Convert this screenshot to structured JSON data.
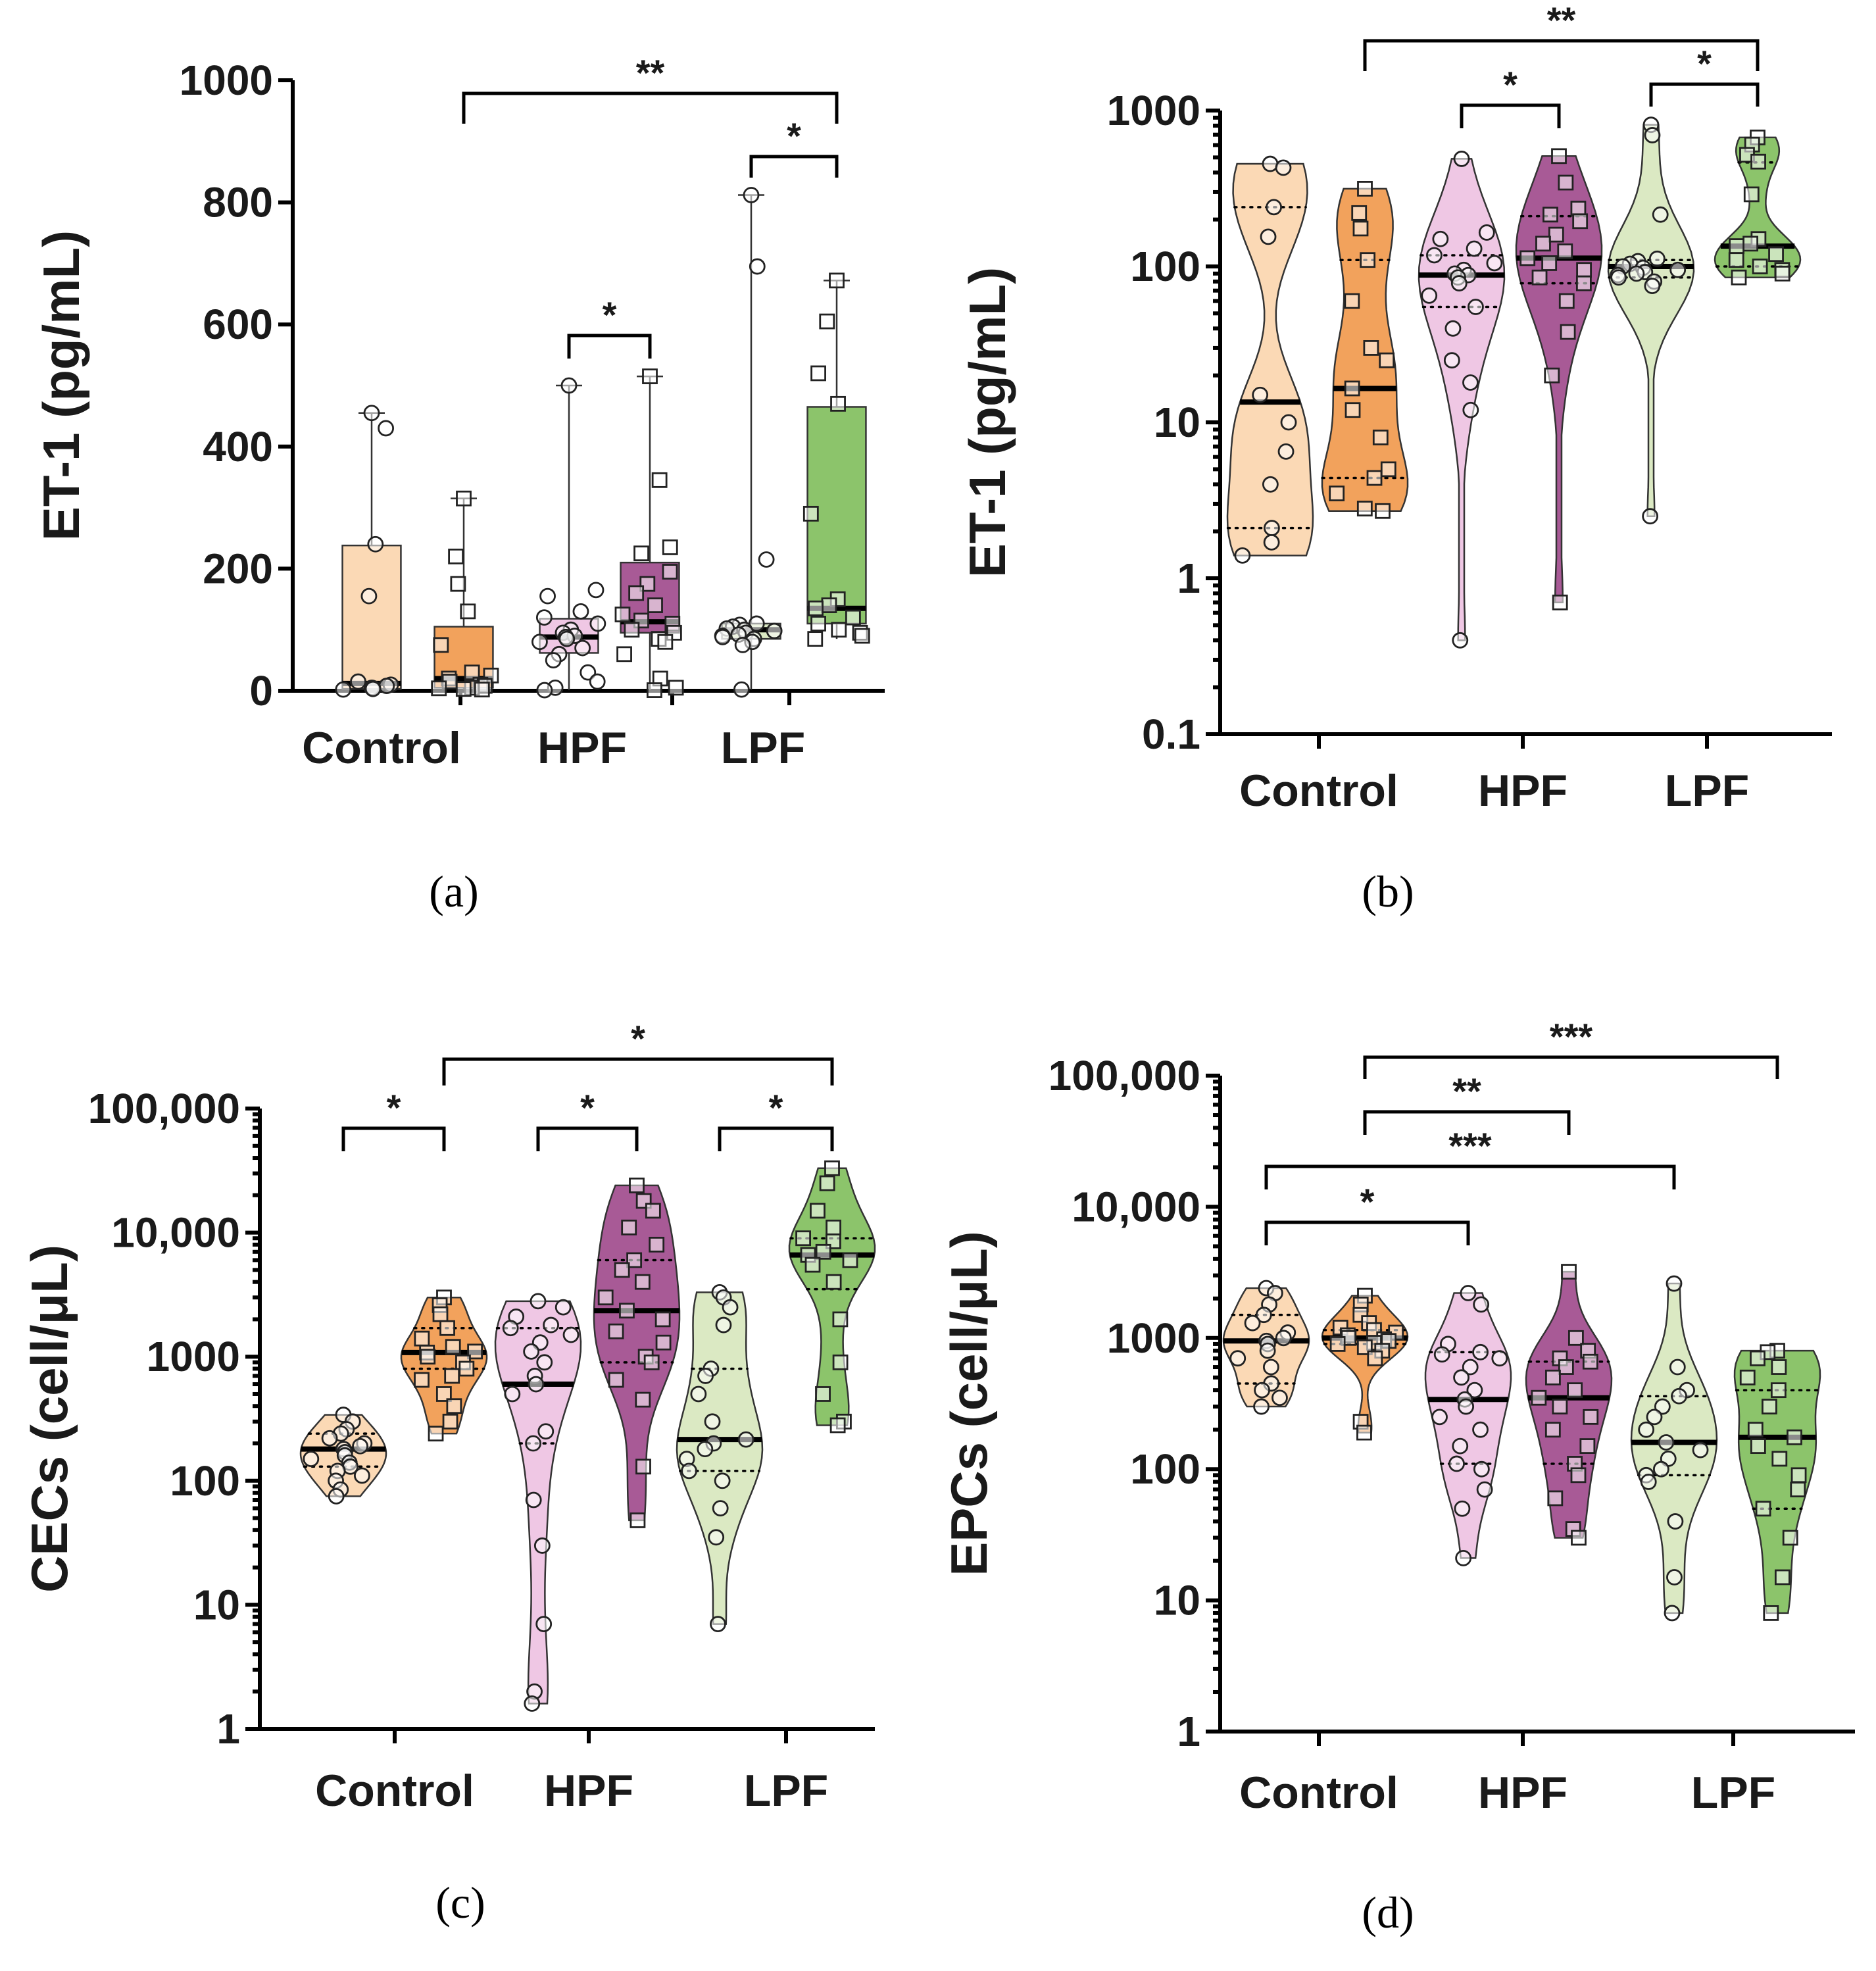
{
  "colors": {
    "control_circle": "#fbd9b5",
    "control_square": "#f2a25c",
    "hpf_circle": "#efc7e4",
    "hpf_square": "#a85a96",
    "lpf_circle": "#dbe9c3",
    "lpf_square": "#8cc46b"
  },
  "chart_data": [
    {
      "id": "a",
      "type": "box",
      "panel_label": "(a)",
      "ylabel": "ET-1 (pg/mL)",
      "scale": "linear",
      "ylim": [
        0,
        1000
      ],
      "yticks": [
        0,
        200,
        400,
        600,
        800,
        1000
      ],
      "yticklabels": [
        "0",
        "200",
        "400",
        "600",
        "800",
        "1000"
      ],
      "categories": [
        "Control",
        "HPF",
        "LPF"
      ],
      "series": [
        {
          "group": "Control",
          "marker": "circle",
          "color_key": "control_circle",
          "min": 2,
          "q1": 3,
          "median": 12,
          "q3": 238,
          "max": 455,
          "values": [
            455,
            430,
            240,
            155,
            15,
            10,
            8,
            5,
            4,
            3,
            2
          ]
        },
        {
          "group": "Control",
          "marker": "square",
          "color_key": "control_square",
          "min": 2,
          "q1": 5,
          "median": 20,
          "q3": 105,
          "max": 315,
          "values": [
            315,
            220,
            175,
            130,
            75,
            30,
            25,
            20,
            15,
            10,
            8,
            5,
            4,
            3,
            2
          ]
        },
        {
          "group": "HPF",
          "marker": "circle",
          "color_key": "hpf_circle",
          "min": 1,
          "q1": 62,
          "median": 88,
          "q3": 118,
          "max": 500,
          "values": [
            500,
            165,
            155,
            130,
            120,
            110,
            100,
            95,
            90,
            88,
            85,
            80,
            70,
            60,
            50,
            30,
            15,
            5,
            1
          ]
        },
        {
          "group": "HPF",
          "marker": "square",
          "color_key": "hpf_square",
          "min": 1,
          "q1": 95,
          "median": 113,
          "q3": 210,
          "max": 515,
          "values": [
            515,
            345,
            235,
            225,
            195,
            175,
            160,
            140,
            125,
            115,
            110,
            100,
            95,
            85,
            80,
            60,
            20,
            5,
            1
          ]
        },
        {
          "group": "LPF",
          "marker": "circle",
          "color_key": "lpf_circle",
          "min": 2,
          "q1": 85,
          "median": 100,
          "q3": 110,
          "max": 812,
          "values": [
            812,
            695,
            215,
            110,
            108,
            105,
            102,
            100,
            98,
            95,
            92,
            90,
            88,
            85,
            80,
            75,
            2
          ]
        },
        {
          "group": "LPF",
          "marker": "square",
          "color_key": "lpf_square",
          "min": 85,
          "q1": 110,
          "median": 135,
          "q3": 465,
          "max": 672,
          "values": [
            672,
            605,
            520,
            470,
            290,
            150,
            140,
            135,
            120,
            110,
            100,
            95,
            90,
            85
          ]
        }
      ],
      "significance": [
        {
          "from": 1,
          "to": 5,
          "label": "**"
        },
        {
          "from": 4,
          "to": 5,
          "label": "*"
        },
        {
          "from": 2,
          "to": 3,
          "label": "*"
        }
      ]
    },
    {
      "id": "b",
      "type": "violin",
      "panel_label": "(b)",
      "ylabel": "ET-1 (pg/mL)",
      "scale": "log",
      "ylim": [
        0.1,
        1000
      ],
      "yticks": [
        0.1,
        1,
        10,
        100,
        1000
      ],
      "yticklabels": [
        "0.1",
        "1",
        "10",
        "100",
        "1000"
      ],
      "categories": [
        "Control",
        "HPF",
        "LPF"
      ],
      "series": [
        {
          "group": "Control",
          "marker": "circle",
          "color_key": "control_circle",
          "min": 1.4,
          "q1": 2.1,
          "median": 13.5,
          "q3": 240,
          "max": 455,
          "values": [
            455,
            430,
            240,
            155,
            15,
            10,
            6.5,
            4,
            2.1,
            1.7,
            1.4
          ]
        },
        {
          "group": "Control",
          "marker": "square",
          "color_key": "control_square",
          "min": 2.7,
          "q1": 4.4,
          "median": 16.5,
          "q3": 110,
          "max": 315,
          "values": [
            315,
            220,
            175,
            110,
            60,
            30,
            25,
            16.5,
            12,
            8,
            5,
            4.4,
            3.5,
            2.8,
            2.7
          ]
        },
        {
          "group": "HPF",
          "marker": "circle",
          "color_key": "hpf_circle",
          "min": 0.4,
          "q1": 55,
          "median": 88,
          "q3": 118,
          "max": 490,
          "values": [
            490,
            165,
            150,
            130,
            118,
            105,
            95,
            90,
            88,
            85,
            78,
            65,
            55,
            40,
            25,
            18,
            12,
            0.4
          ]
        },
        {
          "group": "HPF",
          "marker": "square",
          "color_key": "hpf_square",
          "min": 0.7,
          "q1": 78,
          "median": 113,
          "q3": 210,
          "max": 510,
          "values": [
            510,
            345,
            235,
            215,
            195,
            160,
            140,
            125,
            113,
            105,
            95,
            85,
            78,
            60,
            38,
            20,
            0.7
          ]
        },
        {
          "group": "LPF",
          "marker": "circle",
          "color_key": "lpf_circle",
          "min": 2.5,
          "q1": 85,
          "median": 100,
          "q3": 110,
          "max": 810,
          "values": [
            810,
            695,
            215,
            112,
            108,
            104,
            100,
            98,
            95,
            92,
            90,
            88,
            85,
            80,
            75,
            2.5
          ]
        },
        {
          "group": "LPF",
          "marker": "square",
          "color_key": "lpf_square",
          "min": 85,
          "q1": 100,
          "median": 135,
          "q3": 465,
          "max": 672,
          "values": [
            672,
            605,
            520,
            470,
            290,
            150,
            140,
            135,
            120,
            110,
            100,
            95,
            90,
            85
          ]
        }
      ],
      "significance": [
        {
          "from": 1,
          "to": 5,
          "label": "**"
        },
        {
          "from": 2,
          "to": 3,
          "label": "*"
        },
        {
          "from": 4,
          "to": 5,
          "label": "*"
        }
      ]
    },
    {
      "id": "c",
      "type": "violin",
      "panel_label": "(c)",
      "ylabel": "CECs (cell/μL)",
      "scale": "log",
      "ylim": [
        1,
        100000
      ],
      "yticks": [
        1,
        10,
        100,
        1000,
        10000,
        100000
      ],
      "yticklabels": [
        "1",
        "10",
        "100",
        "1000",
        "10,000",
        "100,000"
      ],
      "categories": [
        "Control",
        "HPF",
        "LPF"
      ],
      "series": [
        {
          "group": "Control",
          "marker": "circle",
          "color_key": "control_circle",
          "min": 75,
          "q1": 130,
          "median": 180,
          "q3": 240,
          "max": 340,
          "values": [
            340,
            300,
            260,
            240,
            220,
            200,
            190,
            180,
            170,
            160,
            150,
            140,
            130,
            120,
            110,
            100,
            85,
            75
          ]
        },
        {
          "group": "Control",
          "marker": "square",
          "color_key": "control_square",
          "min": 240,
          "q1": 800,
          "median": 1080,
          "q3": 1700,
          "max": 3000,
          "values": [
            3000,
            2600,
            2200,
            1700,
            1400,
            1200,
            1100,
            1080,
            1000,
            900,
            800,
            700,
            650,
            500,
            400,
            300,
            240
          ]
        },
        {
          "group": "HPF",
          "marker": "circle",
          "color_key": "hpf_circle",
          "min": 1.6,
          "q1": 200,
          "median": 600,
          "q3": 1700,
          "max": 2800,
          "values": [
            2800,
            2500,
            2100,
            1800,
            1700,
            1500,
            1300,
            1100,
            900,
            700,
            600,
            500,
            250,
            200,
            70,
            30,
            7,
            2,
            1.6
          ]
        },
        {
          "group": "HPF",
          "marker": "square",
          "color_key": "hpf_square",
          "min": 48,
          "q1": 900,
          "median": 2350,
          "q3": 6000,
          "max": 24000,
          "values": [
            24000,
            18000,
            15000,
            11000,
            8000,
            6000,
            5000,
            4000,
            3000,
            2350,
            2000,
            1600,
            1300,
            1000,
            900,
            650,
            450,
            130,
            48
          ]
        },
        {
          "group": "LPF",
          "marker": "circle",
          "color_key": "lpf_circle",
          "min": 7,
          "q1": 120,
          "median": 215,
          "q3": 800,
          "max": 3300,
          "values": [
            3300,
            3000,
            2500,
            1800,
            800,
            700,
            500,
            300,
            215,
            200,
            180,
            150,
            120,
            100,
            60,
            35,
            7
          ]
        },
        {
          "group": "LPF",
          "marker": "square",
          "color_key": "lpf_square",
          "min": 280,
          "q1": 3500,
          "median": 6600,
          "q3": 9000,
          "max": 33000,
          "values": [
            33000,
            25000,
            15000,
            11000,
            9000,
            8500,
            7000,
            6600,
            6000,
            5500,
            4000,
            2000,
            900,
            500,
            300,
            280
          ]
        }
      ],
      "significance": [
        {
          "from": 0,
          "to": 1,
          "label": "*"
        },
        {
          "from": 2,
          "to": 3,
          "label": "*"
        },
        {
          "from": 4,
          "to": 5,
          "label": "*"
        },
        {
          "from": 1,
          "to": 5,
          "label": "*"
        }
      ]
    },
    {
      "id": "d",
      "type": "violin",
      "panel_label": "(d)",
      "ylabel": "EPCs (cell/μL)",
      "scale": "log",
      "ylim": [
        1,
        100000
      ],
      "yticks": [
        1,
        10,
        100,
        1000,
        10000,
        100000
      ],
      "yticklabels": [
        "1",
        "10",
        "100",
        "1000",
        "10,000",
        "100,000"
      ],
      "categories": [
        "Control",
        "HPF",
        "LPF"
      ],
      "series": [
        {
          "group": "Control",
          "marker": "circle",
          "color_key": "control_circle",
          "min": 300,
          "q1": 450,
          "median": 950,
          "q3": 1500,
          "max": 2400,
          "values": [
            2400,
            2200,
            1800,
            1500,
            1300,
            1100,
            1000,
            950,
            900,
            800,
            700,
            600,
            450,
            400,
            350,
            300
          ]
        },
        {
          "group": "Control",
          "marker": "square",
          "color_key": "control_square",
          "min": 190,
          "q1": 900,
          "median": 1000,
          "q3": 1150,
          "max": 2100,
          "values": [
            2100,
            1800,
            1500,
            1300,
            1200,
            1150,
            1100,
            1050,
            1000,
            980,
            950,
            920,
            900,
            850,
            800,
            700,
            230,
            190
          ]
        },
        {
          "group": "HPF",
          "marker": "circle",
          "color_key": "hpf_circle",
          "min": 21,
          "q1": 110,
          "median": 340,
          "q3": 780,
          "max": 2200,
          "values": [
            2200,
            1800,
            900,
            780,
            750,
            700,
            600,
            500,
            400,
            340,
            300,
            250,
            200,
            150,
            110,
            100,
            70,
            50,
            21
          ]
        },
        {
          "group": "HPF",
          "marker": "square",
          "color_key": "hpf_square",
          "min": 30,
          "q1": 110,
          "median": 350,
          "q3": 660,
          "max": 3200,
          "values": [
            3200,
            1000,
            800,
            700,
            660,
            600,
            500,
            400,
            350,
            300,
            250,
            200,
            150,
            110,
            90,
            60,
            35,
            30
          ]
        },
        {
          "group": "LPF",
          "marker": "circle",
          "color_key": "lpf_circle",
          "min": 8,
          "q1": 90,
          "median": 160,
          "q3": 360,
          "max": 2600,
          "values": [
            2600,
            600,
            400,
            360,
            300,
            250,
            200,
            160,
            140,
            120,
            100,
            90,
            80,
            40,
            15,
            8
          ]
        },
        {
          "group": "LPF",
          "marker": "square",
          "color_key": "lpf_square",
          "min": 8,
          "q1": 50,
          "median": 175,
          "q3": 400,
          "max": 800,
          "values": [
            800,
            780,
            700,
            600,
            500,
            400,
            300,
            200,
            175,
            150,
            120,
            90,
            70,
            50,
            30,
            15,
            8
          ]
        }
      ],
      "significance": [
        {
          "from": 1,
          "to": 5,
          "label": "***"
        },
        {
          "from": 1,
          "to": 3,
          "label": "**"
        },
        {
          "from": 0,
          "to": 4,
          "label": "***"
        },
        {
          "from": 0,
          "to": 2,
          "label": "*"
        }
      ]
    }
  ]
}
